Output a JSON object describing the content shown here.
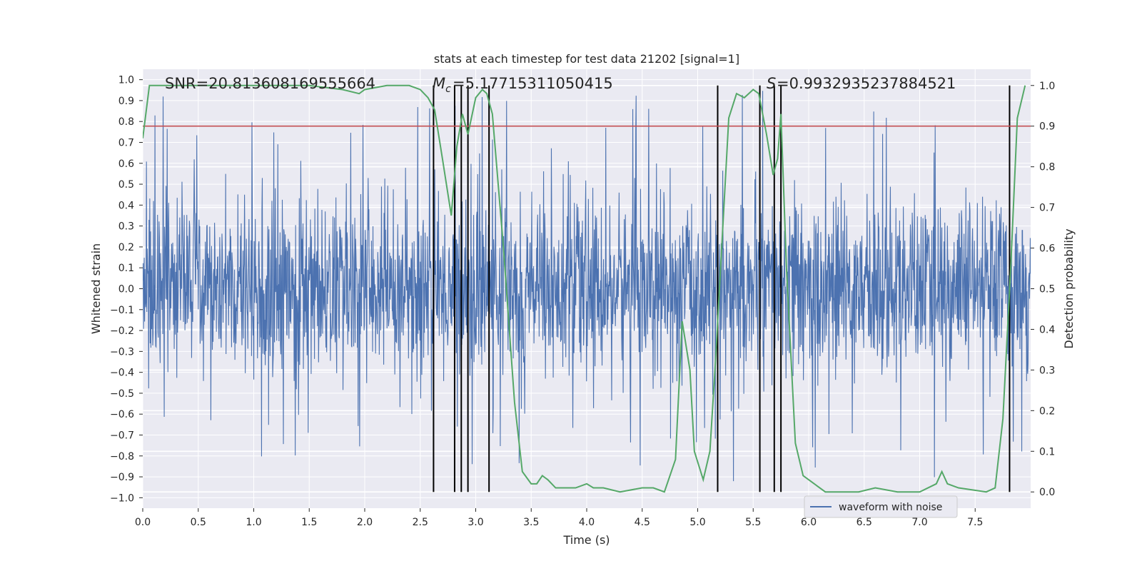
{
  "chart_data": {
    "type": "line",
    "title": "stats at each timestep for test data 21202 [signal=1]",
    "xlabel": "Time (s)",
    "ylabel": "Whitened strain",
    "ylabel_right": "Detection probability",
    "xlim": [
      0,
      8
    ],
    "ylim": [
      -1.05,
      1.05
    ],
    "ylim_right": [
      -0.04,
      1.04
    ],
    "x_ticks": [
      "0.0",
      "0.5",
      "1.0",
      "1.5",
      "2.0",
      "2.5",
      "3.0",
      "3.5",
      "4.0",
      "4.5",
      "5.0",
      "5.5",
      "6.0",
      "6.5",
      "7.0",
      "7.5"
    ],
    "y_ticks": [
      "1.0",
      "0.9",
      "0.8",
      "0.7",
      "0.6",
      "0.5",
      "0.4",
      "0.3",
      "0.2",
      "0.1",
      "0.0",
      "−0.1",
      "−0.2",
      "−0.3",
      "−0.4",
      "−0.5",
      "−0.6",
      "−0.7",
      "−0.8",
      "−0.9",
      "−1.0"
    ],
    "y_ticks_right": [
      "1.0",
      "0.9",
      "0.8",
      "0.7",
      "0.6",
      "0.5",
      "0.4",
      "0.3",
      "0.2",
      "0.1",
      "0.0"
    ],
    "annotations": {
      "snr": "SNR=20.813608169555664",
      "mc": "=5.17715311050415",
      "s": "=0.9932935237884521"
    },
    "legend": {
      "label": "waveform with noise",
      "placement": "lower-right"
    },
    "colors": {
      "waveform": "#4c72b0",
      "probability": "#55a868",
      "threshold": "#c44e52",
      "detections": "#000000",
      "background": "#eaeaf2",
      "grid": "#ffffff"
    },
    "series": [
      {
        "name": "waveform with noise",
        "kind": "noise",
        "typical_range": [
          -0.45,
          0.45
        ],
        "peak_range": [
          -0.94,
          0.95
        ]
      }
    ],
    "detection_probability": {
      "x": [
        0.0,
        0.06,
        0.2,
        0.5,
        1.0,
        1.5,
        1.8,
        1.95,
        2.0,
        2.2,
        2.4,
        2.5,
        2.57,
        2.63,
        2.7,
        2.78,
        2.83,
        2.88,
        2.93,
        3.0,
        3.06,
        3.1,
        3.15,
        3.25,
        3.35,
        3.42,
        3.5,
        3.55,
        3.6,
        3.65,
        3.72,
        3.8,
        3.9,
        4.0,
        4.06,
        4.15,
        4.3,
        4.5,
        4.6,
        4.7,
        4.8,
        4.86,
        4.93,
        4.97,
        5.05,
        5.11,
        5.16,
        5.22,
        5.28,
        5.35,
        5.42,
        5.5,
        5.55,
        5.62,
        5.68,
        5.72,
        5.75,
        5.8,
        5.88,
        5.95,
        6.05,
        6.15,
        6.3,
        6.45,
        6.6,
        6.8,
        7.0,
        7.15,
        7.2,
        7.25,
        7.35,
        7.6,
        7.68,
        7.75,
        7.82,
        7.88,
        7.95
      ],
      "y": [
        0.87,
        1.0,
        1.0,
        1.0,
        1.0,
        1.0,
        0.99,
        0.98,
        0.99,
        1.0,
        1.0,
        0.99,
        0.97,
        0.94,
        0.82,
        0.68,
        0.85,
        0.93,
        0.88,
        0.97,
        0.99,
        0.98,
        0.93,
        0.6,
        0.22,
        0.05,
        0.02,
        0.02,
        0.04,
        0.03,
        0.01,
        0.01,
        0.01,
        0.02,
        0.01,
        0.01,
        0.0,
        0.01,
        0.01,
        0.0,
        0.08,
        0.42,
        0.3,
        0.1,
        0.03,
        0.1,
        0.32,
        0.62,
        0.92,
        0.98,
        0.97,
        0.99,
        0.98,
        0.88,
        0.78,
        0.82,
        0.93,
        0.55,
        0.12,
        0.04,
        0.02,
        0.0,
        0.0,
        0.0,
        0.01,
        0.0,
        0.0,
        0.02,
        0.05,
        0.02,
        0.01,
        0.0,
        0.01,
        0.18,
        0.55,
        0.92,
        1.0
      ]
    },
    "threshold": 0.9,
    "detection_markers": [
      2.62,
      2.81,
      2.87,
      2.93,
      3.12,
      5.18,
      5.56,
      5.69,
      5.75,
      7.81
    ]
  }
}
